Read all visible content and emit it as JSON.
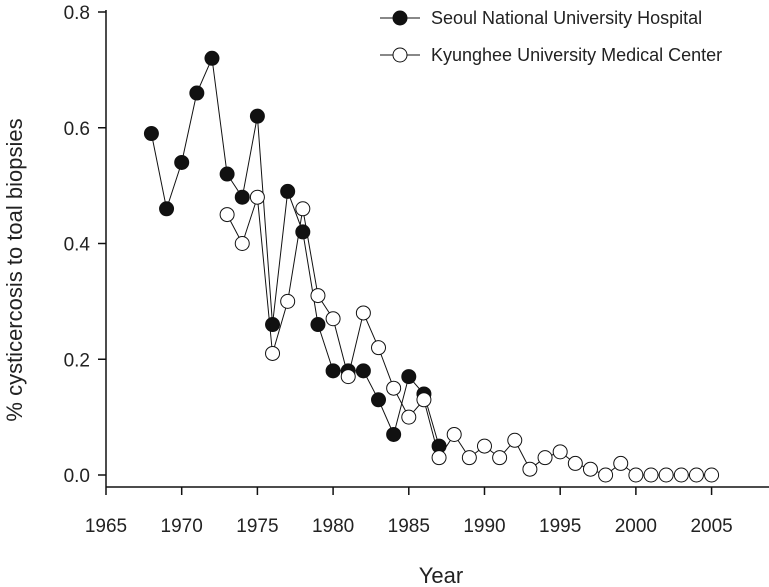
{
  "chart_data": {
    "type": "line",
    "title": "",
    "xlabel": "Year",
    "ylabel": "% cysticercosis to toal biopsies",
    "xlim": [
      1965,
      2008
    ],
    "ylim": [
      0,
      0.8
    ],
    "xticks": [
      1965,
      1970,
      1975,
      1980,
      1985,
      1990,
      1995,
      2000,
      2005
    ],
    "yticks": [
      0.0,
      0.2,
      0.4,
      0.6,
      0.8
    ],
    "ytick_labels": [
      "0.0",
      "0.2",
      "0.4",
      "0.6",
      "0.8"
    ],
    "grid": false,
    "legend_position": "top-right",
    "series": [
      {
        "name": "Seoul National University Hospital",
        "marker": "filled-circle",
        "color": "#111111",
        "x": [
          1968,
          1969,
          1970,
          1971,
          1972,
          1973,
          1974,
          1975,
          1976,
          1977,
          1978,
          1979,
          1980,
          1981,
          1982,
          1983,
          1984,
          1985,
          1986,
          1987
        ],
        "y": [
          0.59,
          0.46,
          0.54,
          0.66,
          0.72,
          0.52,
          0.48,
          0.62,
          0.26,
          0.49,
          0.42,
          0.26,
          0.18,
          0.18,
          0.18,
          0.13,
          0.07,
          0.17,
          0.14,
          0.05
        ]
      },
      {
        "name": "Kyunghee University Medical Center",
        "marker": "open-circle",
        "color": "#111111",
        "x": [
          1973,
          1974,
          1975,
          1976,
          1977,
          1978,
          1979,
          1980,
          1981,
          1982,
          1983,
          1984,
          1985,
          1986,
          1987,
          1988,
          1989,
          1990,
          1991,
          1992,
          1993,
          1994,
          1995,
          1996,
          1997,
          1998,
          1999,
          2000,
          2001,
          2002,
          2003,
          2004,
          2005
        ],
        "y": [
          0.45,
          0.4,
          0.48,
          0.21,
          0.3,
          0.46,
          0.31,
          0.27,
          0.17,
          0.28,
          0.22,
          0.15,
          0.1,
          0.13,
          0.03,
          0.07,
          0.03,
          0.05,
          0.03,
          0.06,
          0.01,
          0.03,
          0.04,
          0.02,
          0.01,
          0.0,
          0.02,
          0.0,
          0.0,
          0.0,
          0.0,
          0.0,
          0.0
        ]
      }
    ]
  }
}
